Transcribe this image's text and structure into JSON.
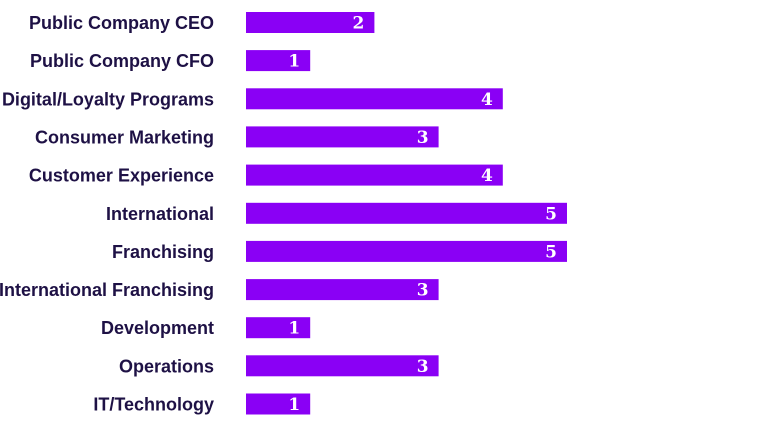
{
  "chart_data": {
    "type": "bar",
    "orientation": "horizontal",
    "title": "",
    "xlabel": "",
    "ylabel": "",
    "categories": [
      "Public Company CEO",
      "Public Company CFO",
      "Digital/Loyalty Programs",
      "Consumer Marketing",
      "Customer Experience",
      "International",
      "Franchising",
      "International Franchising",
      "Development",
      "Operations",
      "IT/Technology"
    ],
    "values": [
      2,
      1,
      4,
      3,
      4,
      5,
      5,
      3,
      1,
      3,
      1
    ],
    "xlim": [
      0,
      5
    ],
    "grid": false,
    "legend": "none"
  },
  "colors": {
    "bar": "#8a00f5",
    "label_text": "#1e1145",
    "value_text": "#ffffff"
  }
}
